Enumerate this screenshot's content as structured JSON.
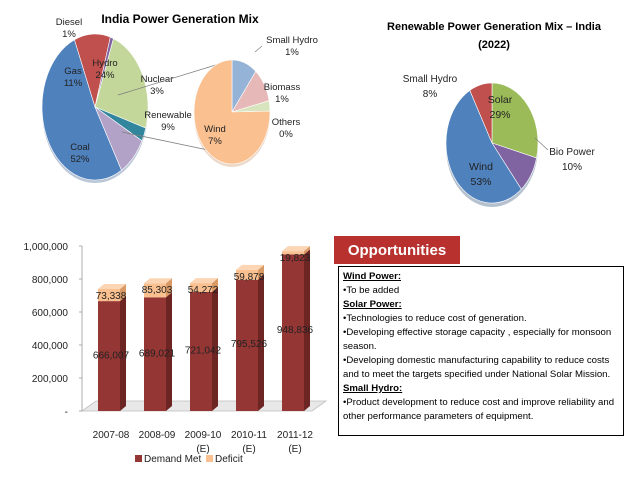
{
  "pie1": {
    "title": "India Power Generation Mix",
    "slices": [
      {
        "name": "Coal",
        "pct": "52%",
        "value": 52,
        "color": "#4f81bd"
      },
      {
        "name": "Gas",
        "pct": "11%",
        "value": 11,
        "color": "#c0504d"
      },
      {
        "name": "Diesel",
        "pct": "1%",
        "value": 1,
        "color": "#8064a2"
      },
      {
        "name": "Hydro",
        "pct": "24%",
        "value": 24,
        "color": "#c4d79b"
      },
      {
        "name": "Nuclear",
        "pct": "3%",
        "value": 3,
        "color": "#31859c"
      },
      {
        "name": "Renewable",
        "pct": "9%",
        "value": 9,
        "color": "#b3a2c7"
      }
    ],
    "breakout": [
      {
        "name": "Small Hydro",
        "pct": "1%",
        "value": 1,
        "color": "#95b3d7"
      },
      {
        "name": "Biomass",
        "pct": "1%",
        "value": 1,
        "color": "#e6b9b8"
      },
      {
        "name": "Others",
        "pct": "0%",
        "value": 0.3,
        "color": "#d7e4bd"
      },
      {
        "name": "Wind",
        "pct": "7%",
        "value": 7,
        "color": "#fac090"
      }
    ]
  },
  "pie2": {
    "title_line1": "Renewable Power Generation Mix – India",
    "title_line2": "(2022)",
    "slices": [
      {
        "name": "Solar",
        "pct": "29%",
        "value": 29,
        "color": "#9bbb59"
      },
      {
        "name": "Bio Power",
        "pct": "10%",
        "value": 10,
        "color": "#8064a2"
      },
      {
        "name": "Wind",
        "pct": "53%",
        "value": 53,
        "color": "#4f81bd"
      },
      {
        "name": "Small Hydro",
        "pct": "8%",
        "value": 8,
        "color": "#c0504d"
      }
    ]
  },
  "chart_data": [
    {
      "type": "pie",
      "title": "India Power Generation Mix",
      "categories": [
        "Coal",
        "Gas",
        "Diesel",
        "Hydro",
        "Nuclear",
        "Renewable"
      ],
      "values": [
        52,
        11,
        1,
        24,
        3,
        9
      ],
      "breakout": {
        "of": "Renewable",
        "categories": [
          "Small Hydro",
          "Biomass",
          "Others",
          "Wind"
        ],
        "values": [
          1,
          1,
          0,
          7
        ]
      }
    },
    {
      "type": "pie",
      "title": "Renewable Power Generation Mix – India (2022)",
      "categories": [
        "Solar",
        "Bio Power",
        "Wind",
        "Small Hydro"
      ],
      "values": [
        29,
        10,
        53,
        8
      ]
    },
    {
      "type": "bar",
      "stacked": true,
      "categories": [
        "2007-08",
        "2008-09",
        "2009-10 (E)",
        "2010-11 (E)",
        "2011-12 (E)"
      ],
      "series": [
        {
          "name": "Demand Met",
          "values": [
            666007,
            689021,
            721042,
            795526,
            948836
          ],
          "color": "#943634"
        },
        {
          "name": "Deficit",
          "values": [
            73338,
            85303,
            54272,
            59878,
            19823
          ],
          "color": "#fac090"
        }
      ],
      "ylim": [
        0,
        1000000
      ],
      "yticks": [
        "-",
        "200,000",
        "400,000",
        "600,000",
        "800,000",
        "1,000,000"
      ]
    }
  ],
  "bar": {
    "yticks": [
      "-",
      "200,000",
      "400,000",
      "600,000",
      "800,000",
      "1,000,000"
    ],
    "cats": [
      {
        "l1": "2007-08",
        "l2": ""
      },
      {
        "l1": "2008-09",
        "l2": ""
      },
      {
        "l1": "2009-10",
        "l2": "(E)"
      },
      {
        "l1": "2010-11",
        "l2": "(E)"
      },
      {
        "l1": "2011-12",
        "l2": "(E)"
      }
    ],
    "demand": [
      666007,
      689021,
      721042,
      795526,
      948836
    ],
    "deficit": [
      73338,
      85303,
      54272,
      59878,
      19823
    ],
    "demand_labels": [
      "666,007",
      "689,021",
      "721,042",
      "795,526",
      "948,836"
    ],
    "deficit_labels": [
      "73,338",
      "85,303",
      "54,272",
      "59,878",
      "19,823"
    ],
    "legend": {
      "demand": "Demand Met",
      "deficit": "Deficit"
    },
    "colors": {
      "demand": "#943634",
      "demand_side": "#6d2524",
      "demand_top": "#b65452",
      "deficit": "#fac090",
      "deficit_side": "#d99a66",
      "deficit_top": "#fcd5b5"
    }
  },
  "opportunities": {
    "header": "Opportunities",
    "wind_head": "Wind Power:",
    "wind_1": "•To be added",
    "solar_head": "Solar Power:",
    "solar_1": "•Technologies to reduce cost of generation.",
    "solar_2": "•Developing effective storage capacity , especially for monsoon season.",
    "solar_3": "•Developing domestic manufacturing capability to reduce costs and to meet the targets specified under National Solar Mission.",
    "hydro_head": "Small Hydro:",
    "hydro_1": "•Product development to reduce cost and improve reliability and other performance parameters of equipment."
  }
}
